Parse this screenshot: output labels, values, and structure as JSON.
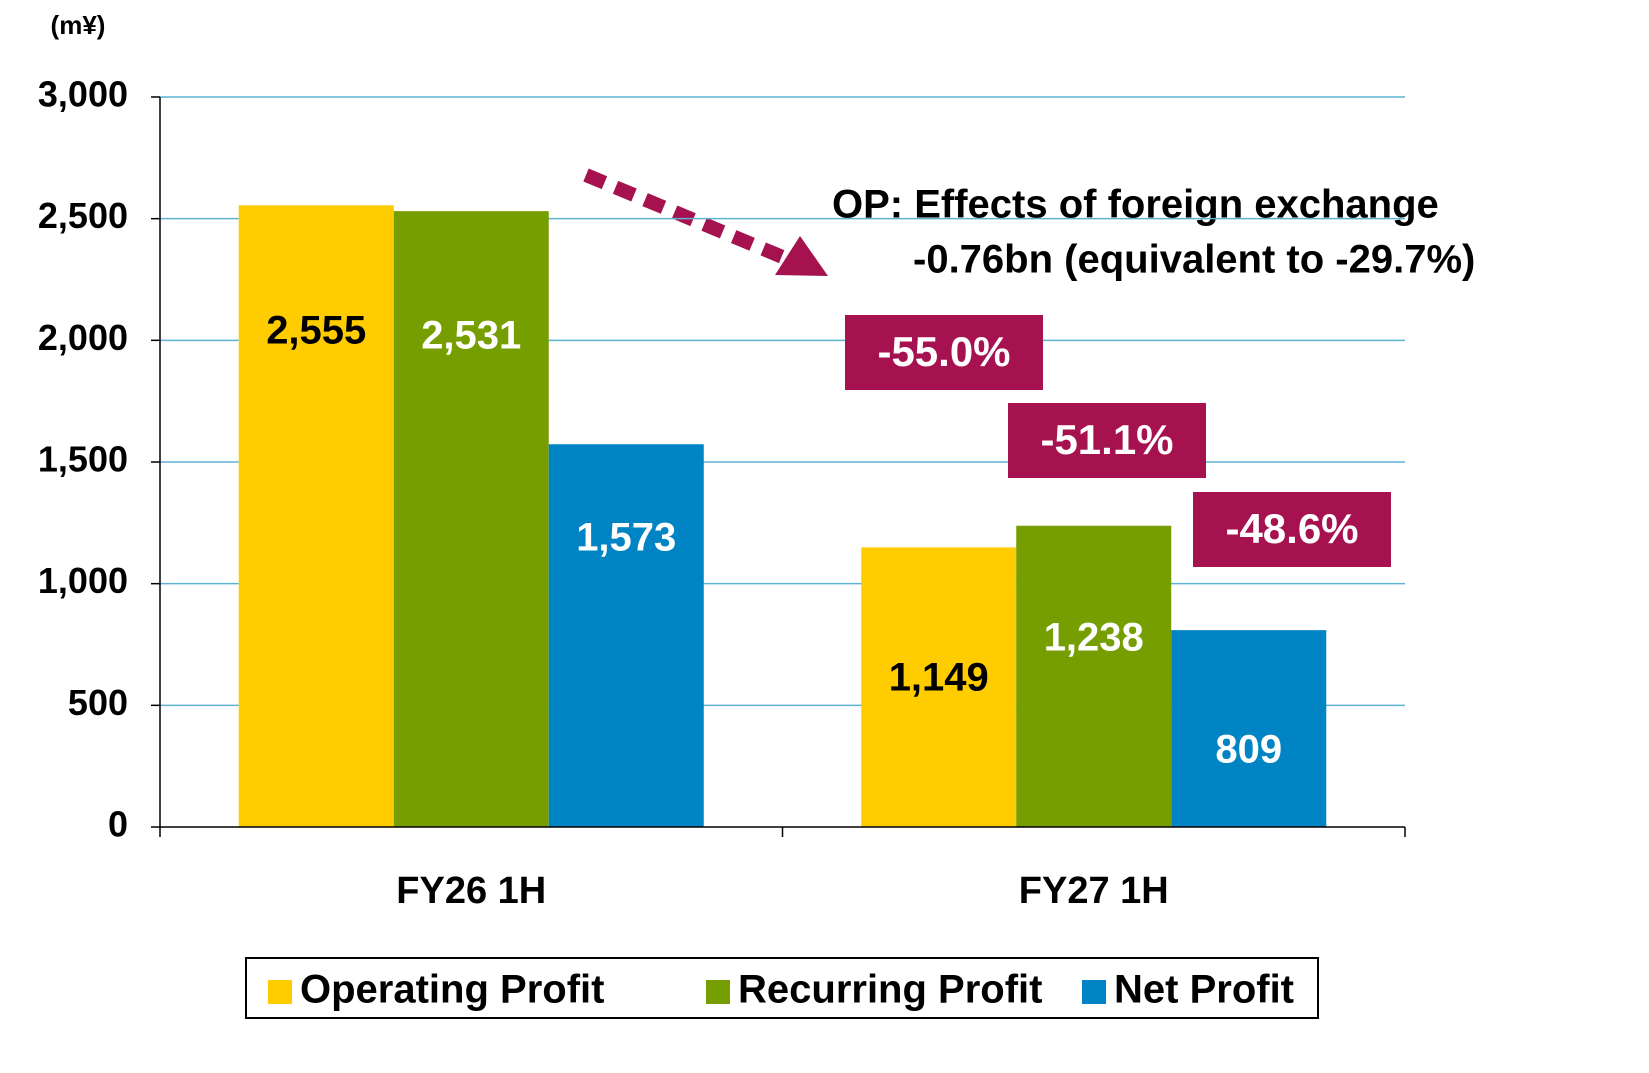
{
  "chart_data": {
    "type": "bar",
    "unit_label": "(m¥)",
    "categories": [
      "FY26 1H",
      "FY27 1H"
    ],
    "series": [
      {
        "name": "Operating Profit",
        "color": "#FFCC00",
        "values": [
          2555,
          1149
        ],
        "value_labels": [
          "2,555",
          "1,149"
        ],
        "label_color": "#000000"
      },
      {
        "name": "Recurring Profit",
        "color": "#779E00",
        "values": [
          2531,
          1238
        ],
        "value_labels": [
          "2,531",
          "1,238"
        ],
        "label_color": "#FFFFFF"
      },
      {
        "name": "Net Profit",
        "color": "#0084C4",
        "values": [
          1573,
          809
        ],
        "value_labels": [
          "1,573",
          "809"
        ],
        "label_color": "#FFFFFF"
      }
    ],
    "ylim": [
      0,
      3000
    ],
    "yticks": [
      0,
      500,
      {
        "value": 1000,
        "label": "1,000"
      },
      {
        "value": 1500,
        "label": "1,500"
      },
      {
        "value": 2000,
        "label": "2,000"
      },
      {
        "value": 2500,
        "label": "2,500"
      },
      {
        "value": 3000,
        "label": "3,000"
      }
    ],
    "grid": true,
    "grid_color": "#5DB3D3",
    "legend": "bottom",
    "annotations": [
      "OP: Effects of foreign exchange",
      "-0.76bn (equivalent to -29.7%)"
    ],
    "change_labels": [
      "-55.0%",
      "-51.1%",
      "-48.6%"
    ],
    "change_color": "#A6114F"
  }
}
